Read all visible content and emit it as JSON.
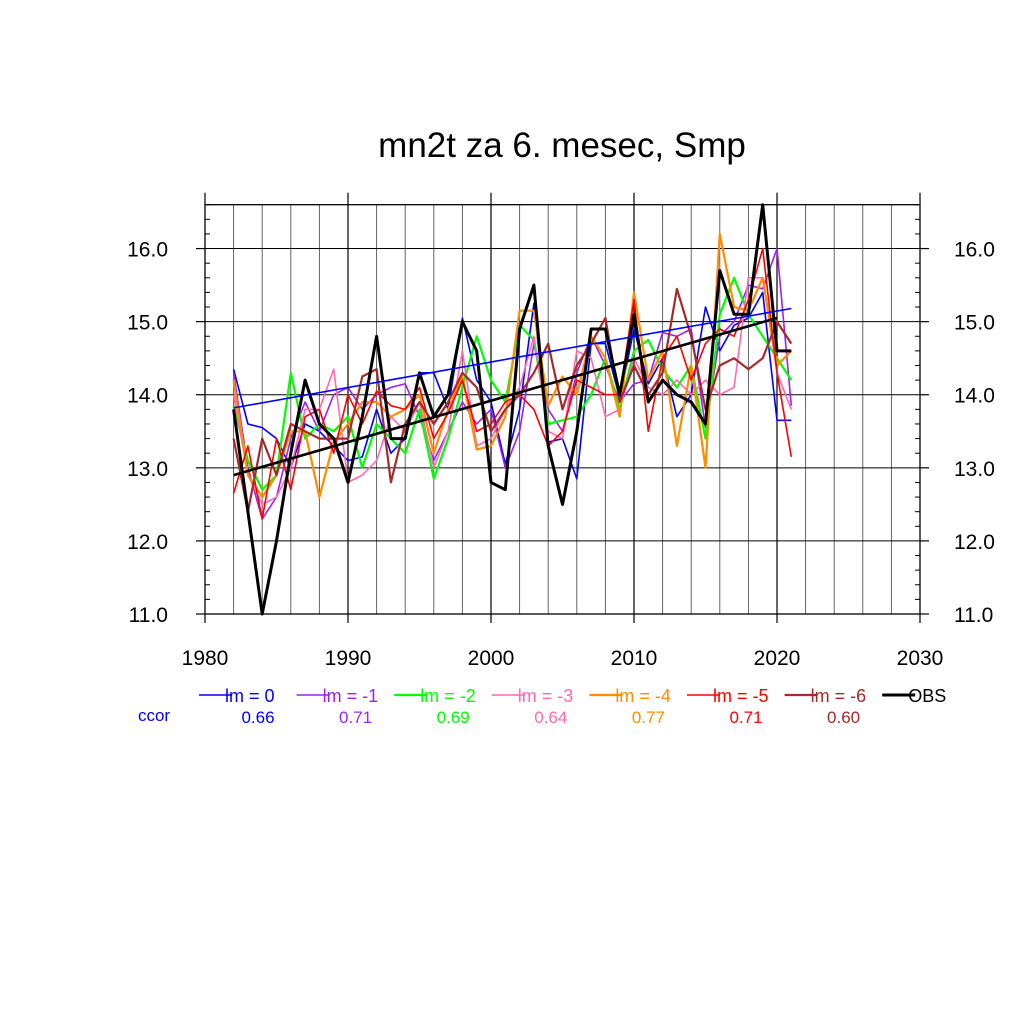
{
  "chart_data": {
    "type": "line",
    "title": "mn2t za 6. mesec, Smp",
    "xlabel": "",
    "ylabel": "",
    "xlim": [
      1980,
      2030
    ],
    "ylim": [
      11.0,
      16.6
    ],
    "x_ticks": [
      1980,
      1990,
      2000,
      2010,
      2020,
      2030
    ],
    "x_tick_labels": [
      "1980",
      "1990",
      "2000",
      "2010",
      "2020",
      "2030"
    ],
    "y_ticks": [
      11.0,
      12.0,
      13.0,
      14.0,
      15.0,
      16.0
    ],
    "y_tick_labels": [
      "11.0",
      "12.0",
      "13.0",
      "14.0",
      "15.0",
      "16.0"
    ],
    "grid": true,
    "legend_position": "bottom",
    "ccor_label": "ccor",
    "x": [
      1982,
      1983,
      1984,
      1985,
      1986,
      1987,
      1988,
      1989,
      1990,
      1991,
      1992,
      1993,
      1994,
      1995,
      1996,
      1997,
      1998,
      1999,
      2000,
      2001,
      2002,
      2003,
      2004,
      2005,
      2006,
      2007,
      2008,
      2009,
      2010,
      2011,
      2012,
      2013,
      2014,
      2015,
      2016,
      2017,
      2018,
      2019,
      2020,
      2021
    ],
    "series": [
      {
        "name": "lm = 0",
        "ccor": "0.66",
        "color": "#0000ff",
        "width": 1.6,
        "values": [
          14.35,
          13.6,
          13.55,
          13.4,
          13.0,
          13.6,
          13.5,
          13.3,
          13.1,
          13.15,
          13.8,
          13.2,
          13.4,
          14.3,
          14.3,
          13.8,
          15.05,
          14.2,
          13.9,
          13.05,
          13.8,
          15.25,
          13.35,
          13.4,
          12.85,
          14.7,
          14.7,
          13.95,
          14.9,
          14.15,
          14.5,
          13.7,
          14.0,
          15.2,
          14.6,
          14.95,
          15.05,
          15.4,
          13.65,
          13.65
        ]
      },
      {
        "name": "lm = -1",
        "ccor": "0.71",
        "color": "#a020f0",
        "width": 1.6,
        "values": [
          14.3,
          13.0,
          12.3,
          12.6,
          13.4,
          13.9,
          13.5,
          14.0,
          14.1,
          13.8,
          14.0,
          14.1,
          14.15,
          13.7,
          13.1,
          13.5,
          13.9,
          13.6,
          13.8,
          13.0,
          13.5,
          14.7,
          13.8,
          13.5,
          14.3,
          14.8,
          14.4,
          13.9,
          14.15,
          14.2,
          14.85,
          14.8,
          14.9,
          13.55,
          14.8,
          15.0,
          15.5,
          15.45,
          16.0,
          13.85
        ]
      },
      {
        "name": "lm = -2",
        "ccor": "0.69",
        "color": "#00ff00",
        "width": 2.2,
        "values": [
          13.85,
          13.1,
          12.7,
          12.9,
          14.3,
          13.4,
          13.6,
          13.5,
          13.7,
          13.0,
          13.6,
          13.4,
          13.2,
          13.8,
          12.85,
          13.4,
          14.1,
          14.8,
          14.2,
          13.9,
          14.95,
          14.75,
          13.6,
          13.65,
          13.7,
          14.0,
          14.5,
          13.8,
          14.6,
          14.75,
          14.35,
          14.1,
          14.4,
          13.4,
          15.1,
          15.6,
          15.1,
          14.8,
          14.5,
          14.2
        ]
      },
      {
        "name": "lm = -3",
        "ccor": "0.64",
        "color": "#ff69b4",
        "width": 1.6,
        "values": [
          14.0,
          12.9,
          12.5,
          12.6,
          13.0,
          13.8,
          13.8,
          14.35,
          12.8,
          12.9,
          13.1,
          13.7,
          13.5,
          13.9,
          13.0,
          13.5,
          14.6,
          13.3,
          13.4,
          13.8,
          14.1,
          14.8,
          13.5,
          13.4,
          14.6,
          14.5,
          13.7,
          13.8,
          14.5,
          14.1,
          14.0,
          14.2,
          14.0,
          14.2,
          14.0,
          14.1,
          15.6,
          15.6,
          14.3,
          13.8
        ]
      },
      {
        "name": "lm = -4",
        "ccor": "0.77",
        "color": "#ff8c00",
        "width": 2.2,
        "values": [
          14.2,
          12.9,
          12.6,
          12.9,
          13.5,
          13.5,
          12.6,
          13.35,
          13.6,
          13.9,
          13.9,
          13.7,
          13.8,
          14.0,
          13.2,
          13.8,
          14.25,
          13.25,
          13.3,
          13.7,
          15.15,
          15.15,
          13.85,
          14.25,
          14.0,
          14.8,
          14.5,
          13.7,
          15.4,
          14.2,
          14.6,
          13.3,
          14.4,
          13.0,
          16.2,
          15.2,
          15.15,
          15.6,
          14.4,
          14.6
        ]
      },
      {
        "name": "lm = -5",
        "ccor": "0.71",
        "color": "#ff0000",
        "width": 1.6,
        "values": [
          12.65,
          13.3,
          12.3,
          13.4,
          12.7,
          13.7,
          13.8,
          13.2,
          14.0,
          13.6,
          14.05,
          13.85,
          13.8,
          14.1,
          13.4,
          13.75,
          14.2,
          13.5,
          13.6,
          13.9,
          14.0,
          13.8,
          13.3,
          13.5,
          14.2,
          14.1,
          14.0,
          14.0,
          15.3,
          13.5,
          14.5,
          14.8,
          14.2,
          14.7,
          14.9,
          14.8,
          15.3,
          16.0,
          14.3,
          13.15
        ]
      },
      {
        "name": "lm = -6",
        "ccor": "0.60",
        "color": "#a52a2a",
        "width": 2.2,
        "values": [
          13.4,
          12.4,
          13.4,
          12.9,
          13.6,
          13.5,
          13.4,
          13.4,
          13.4,
          14.25,
          14.35,
          12.8,
          13.6,
          13.9,
          13.6,
          13.9,
          14.3,
          14.1,
          13.5,
          13.8,
          14.0,
          14.3,
          14.7,
          13.8,
          14.4,
          14.7,
          15.05,
          13.9,
          14.4,
          14.0,
          14.3,
          15.45,
          14.8,
          13.8,
          14.4,
          14.5,
          14.35,
          14.5,
          15.0,
          14.7
        ]
      },
      {
        "name": "OBS",
        "ccor": "",
        "color": "#000000",
        "width": 3.0,
        "values": [
          13.8,
          12.4,
          11.0,
          12.0,
          13.2,
          14.2,
          13.6,
          13.4,
          12.8,
          13.7,
          14.8,
          13.4,
          13.4,
          14.3,
          13.7,
          14.0,
          15.0,
          14.6,
          12.8,
          12.7,
          14.9,
          15.5,
          13.3,
          12.5,
          13.5,
          14.9,
          14.9,
          14.0,
          15.1,
          13.9,
          14.2,
          14.0,
          13.9,
          13.6,
          15.7,
          15.1,
          15.1,
          16.6,
          14.6,
          14.6
        ]
      }
    ],
    "trend_lines": [
      {
        "name": "lm = 0 trend",
        "color": "#0000ff",
        "width": 1.6,
        "x": [
          1982,
          2021
        ],
        "values": [
          13.82,
          15.18
        ]
      },
      {
        "name": "OBS trend",
        "color": "#000000",
        "width": 2.6,
        "x": [
          1982,
          2020
        ],
        "values": [
          12.9,
          15.05
        ]
      }
    ]
  }
}
